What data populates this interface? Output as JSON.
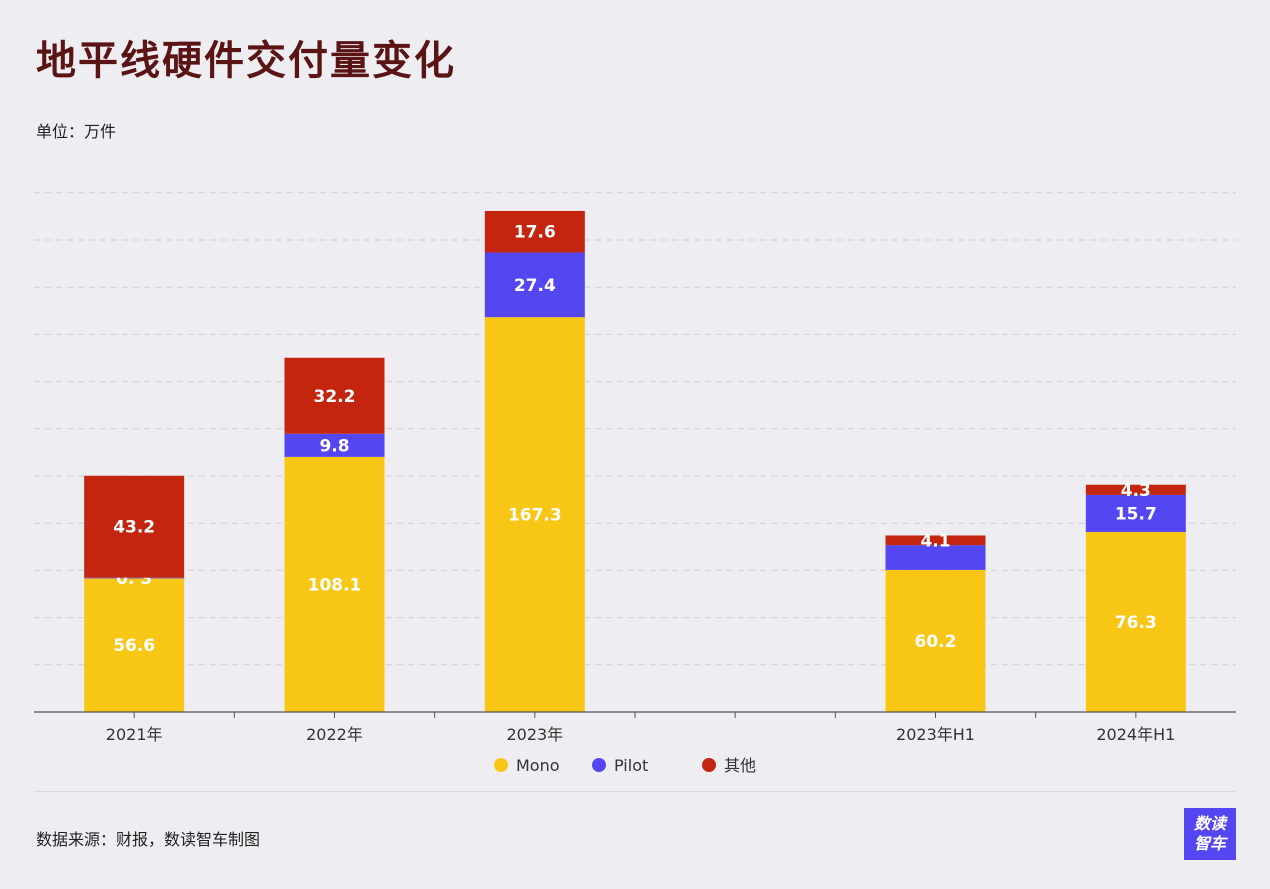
{
  "title": "地平线硬件交付量变化",
  "unit_label": "单位：万件",
  "source": "数据来源：财报，数读智车制图",
  "logo": {
    "line1": "数读",
    "line2": "智车"
  },
  "colors": {
    "mono": "#f8c614",
    "pilot": "#5446f0",
    "other": "#c4250f",
    "background": "#eeedf2"
  },
  "chart_data": {
    "type": "bar",
    "stacked": true,
    "categories": [
      "2021年",
      "2022年",
      "2023年",
      "",
      "2023年H1",
      "2024年H1"
    ],
    "series": [
      {
        "name": "Mono",
        "values": [
          56.6,
          108.1,
          167.3,
          null,
          60.2,
          76.3
        ],
        "labels": [
          "56.6",
          "108.1",
          "167.3",
          "",
          "60.2",
          "76.3"
        ]
      },
      {
        "name": "Pilot",
        "values": [
          0.3,
          9.8,
          27.4,
          null,
          10.5,
          15.7
        ],
        "labels": [
          "0. 3",
          "9.8",
          "27.4",
          "",
          "",
          "15.7"
        ]
      },
      {
        "name": "其他",
        "values": [
          43.2,
          32.2,
          17.6,
          null,
          4.1,
          4.3
        ],
        "labels": [
          "43.2",
          "32.2",
          "17.6",
          "",
          "4.1",
          "4.3"
        ]
      }
    ],
    "ylim": [
      0,
      220
    ],
    "grid": true,
    "legend_position": "bottom-center"
  }
}
